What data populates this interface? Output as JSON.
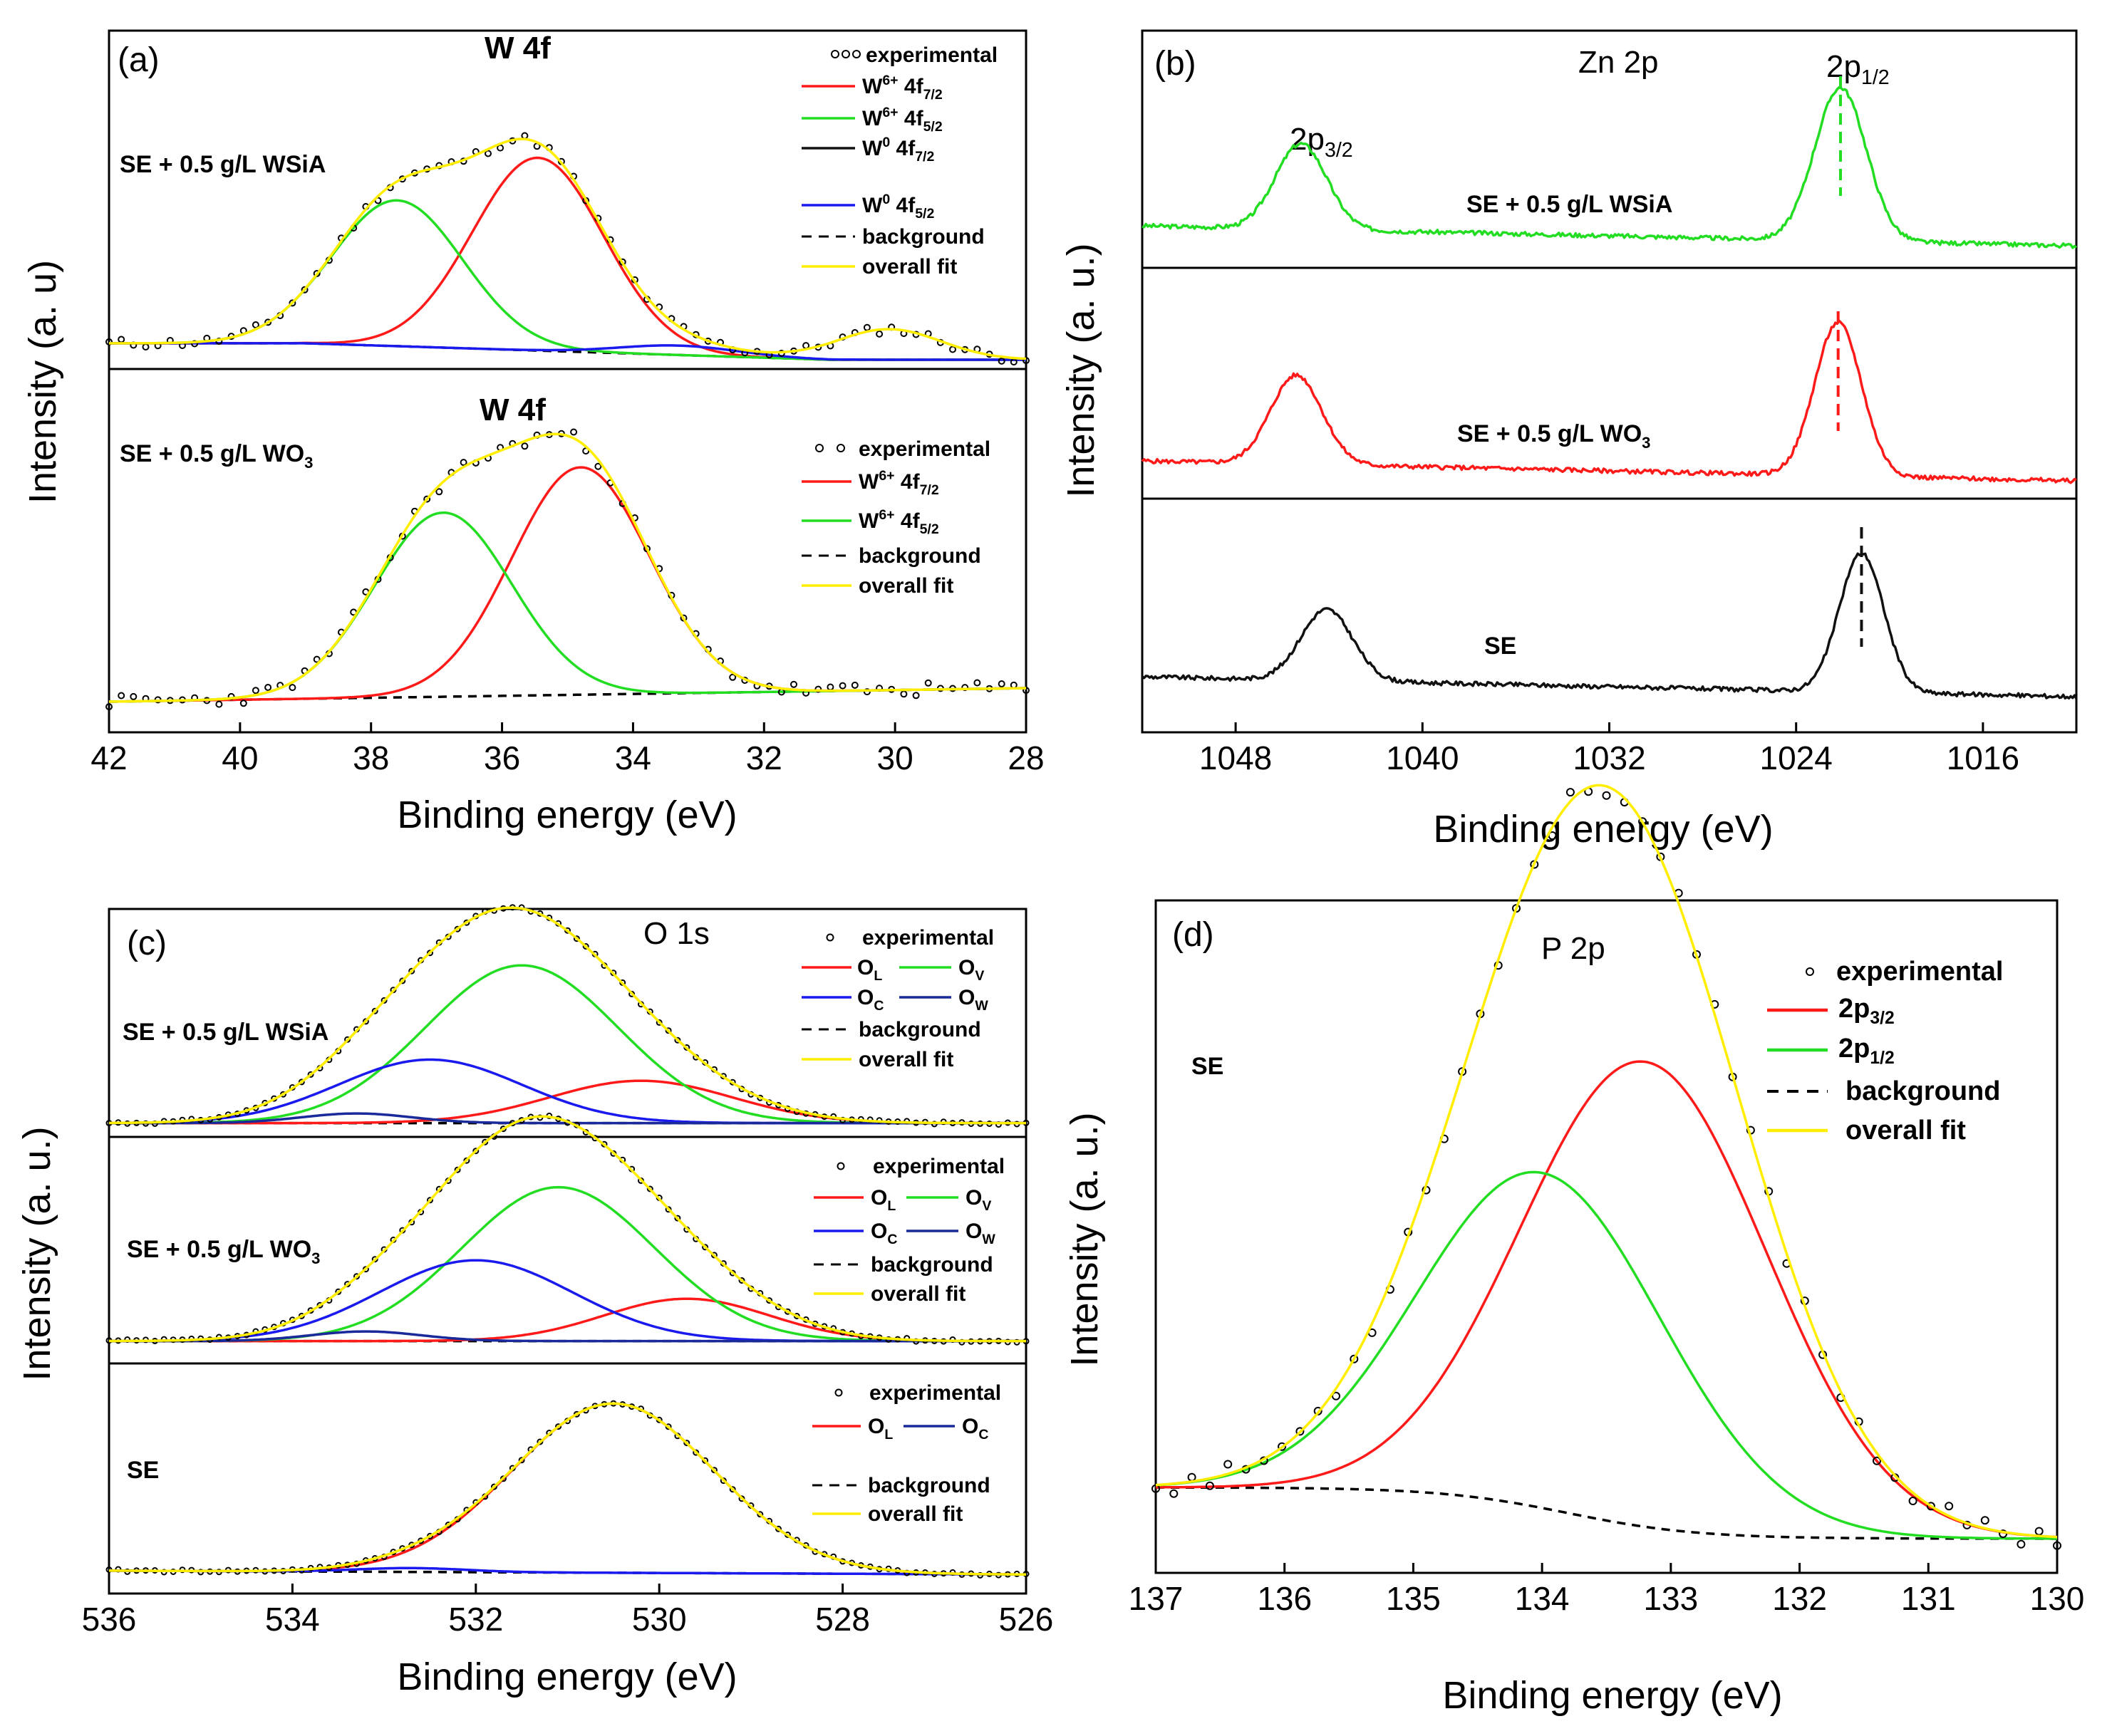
{
  "figure": {
    "x_axis_label": "Binding energy (eV)",
    "y_axis_label_a": "Intensity (a. u)",
    "y_axis_label": "Intensity (a. u.)"
  },
  "colors": {
    "experimental": "#000000",
    "red": "#ff1a1a",
    "green": "#22dd22",
    "black": "#111111",
    "blue": "#1a1aee",
    "navy": "#1a2a9a",
    "background": "#000000",
    "overall_fit": "#ffee00"
  },
  "chart_data": [
    {
      "panel": "(a)",
      "type": "line",
      "title": "W 4f",
      "xlabel": "Binding energy (eV)",
      "ylabel": "Intensity (a. u)",
      "xlim": [
        42,
        28
      ],
      "xticks": [
        "42",
        "40",
        "38",
        "36",
        "34",
        "32",
        "30",
        "28"
      ],
      "subplots": [
        {
          "sample": "SE + 0.5 g/L WSiA",
          "title": "W 4f",
          "legend": [
            "experimental",
            "W6+ 4f7/2",
            "W6+ 4f5/2",
            "W0 4f7/2",
            "W0 4f5/2",
            "background",
            "overall fit"
          ],
          "peaks": [
            {
              "name": "W6+ 4f7/2",
              "center": 35.45,
              "height": 0.82,
              "width": 1.0
            },
            {
              "name": "W6+ 4f5/2",
              "center": 37.6,
              "height": 0.62,
              "width": 1.0
            },
            {
              "name": "W0 4f7/2",
              "center": 31.3,
              "height": 0.0,
              "width": 0.9
            },
            {
              "name": "W0 4f5/2",
              "center": 33.3,
              "height": 0.04,
              "width": 0.9
            },
            {
              "name": "satellite",
              "center": 30.1,
              "height": 0.13,
              "width": 0.8
            }
          ]
        },
        {
          "sample": "SE + 0.5 g/L WO3",
          "title": "W 4f",
          "legend": [
            "experimental",
            "W6+ 4f7/2",
            "W6+ 4f5/2",
            "background",
            "overall fit"
          ],
          "peaks": [
            {
              "name": "W6+ 4f7/2",
              "center": 34.8,
              "height": 0.84,
              "width": 1.05
            },
            {
              "name": "W6+ 4f5/2",
              "center": 36.9,
              "height": 0.68,
              "width": 1.05
            }
          ]
        }
      ]
    },
    {
      "panel": "(b)",
      "type": "line",
      "title": "Zn 2p",
      "xlabel": "Binding energy (eV)",
      "ylabel": "Intensity (a. u.)",
      "xlim": [
        1052,
        1012
      ],
      "xticks": [
        "1048",
        "1040",
        "1032",
        "1024",
        "1016"
      ],
      "annotations": [
        "2p3/2",
        "2p1/2"
      ],
      "series": [
        {
          "name": "SE + 0.5 g/L WSiA",
          "color": "green",
          "peak_2p3_2": 1045.2,
          "peak_2p1_2": 1022.1
        },
        {
          "name": "SE + 0.5 g/L WO3",
          "color": "red",
          "peak_2p3_2": 1045.4,
          "peak_2p1_2": 1022.2
        },
        {
          "name": "SE",
          "color": "black",
          "peak_2p3_2": 1044.1,
          "peak_2p1_2": 1021.2
        }
      ]
    },
    {
      "panel": "(c)",
      "type": "line",
      "title": "O 1s",
      "xlabel": "Binding energy (eV)",
      "ylabel": "Intensity (a. u.)",
      "xlim": [
        536,
        526
      ],
      "xticks": [
        "536",
        "534",
        "532",
        "530",
        "528",
        "526"
      ],
      "subplots": [
        {
          "sample": "SE + 0.5 g/L WSiA",
          "legend": [
            "experimental",
            "OL",
            "OV",
            "OC",
            "OW",
            "background",
            "overall fit"
          ],
          "peaks": [
            {
              "name": "OL",
              "center": 530.2,
              "height": 0.22,
              "width": 1.0
            },
            {
              "name": "OV",
              "center": 531.5,
              "height": 0.82,
              "width": 1.05
            },
            {
              "name": "OC",
              "center": 532.5,
              "height": 0.33,
              "width": 1.0
            },
            {
              "name": "OW",
              "center": 533.3,
              "height": 0.05,
              "width": 0.6
            }
          ]
        },
        {
          "sample": "SE + 0.5 g/L WO3",
          "legend": [
            "experimental",
            "OL",
            "OV",
            "OC",
            "OW",
            "background",
            "overall fit"
          ],
          "peaks": [
            {
              "name": "OL",
              "center": 529.7,
              "height": 0.22,
              "width": 0.9
            },
            {
              "name": "OV",
              "center": 531.1,
              "height": 0.8,
              "width": 1.05
            },
            {
              "name": "OC",
              "center": 532.0,
              "height": 0.42,
              "width": 1.05
            },
            {
              "name": "OW",
              "center": 533.2,
              "height": 0.05,
              "width": 0.6
            }
          ]
        },
        {
          "sample": "SE",
          "legend": [
            "experimental",
            "OL",
            "OC",
            "background",
            "overall fit"
          ],
          "peaks": [
            {
              "name": "OL",
              "center": 530.5,
              "height": 0.88,
              "width": 1.1
            },
            {
              "name": "OC",
              "center": 532.7,
              "height": 0.02,
              "width": 0.6
            }
          ]
        }
      ]
    },
    {
      "panel": "(d)",
      "type": "line",
      "title": "P 2p",
      "sample": "SE",
      "xlabel": "Binding energy (eV)",
      "ylabel": "Intensity (a. u.)",
      "xlim": [
        137,
        130
      ],
      "xticks": [
        "137",
        "136",
        "135",
        "134",
        "133",
        "132",
        "131",
        "130"
      ],
      "legend": [
        "experimental",
        "2p3/2",
        "2p1/2",
        "background",
        "overall fit"
      ],
      "peaks": [
        {
          "name": "2p3/2",
          "center": 133.2,
          "height": 0.68,
          "width": 0.95
        },
        {
          "name": "2p1/2",
          "center": 134.0,
          "height": 0.49,
          "width": 0.95
        }
      ]
    }
  ],
  "panel_a": {
    "label": "(a)",
    "top": {
      "title": "W 4f",
      "sample_pre": "SE + 0.5 g/L WSiA",
      "sample_sub": "",
      "legend": {
        "experimental": "experimental",
        "w6_72_pre": "W",
        "w6_72_sup": "6+",
        "w6_72_mid": " 4f",
        "w6_72_sub": "7/2",
        "w6_52_pre": "W",
        "w6_52_sup": "6+",
        "w6_52_mid": " 4f",
        "w6_52_sub": "5/2",
        "w0_72_pre": "W",
        "w0_72_sup": "0",
        "w0_72_mid": " 4f",
        "w0_72_sub": "7/2",
        "w0_52_pre": "W",
        "w0_52_sup": "0",
        "w0_52_mid": " 4f",
        "w0_52_sub": "5/2",
        "background": "background",
        "overall": "overall fit"
      }
    },
    "bottom": {
      "title": "W 4f",
      "sample_pre": "SE + 0.5 g/L WO",
      "sample_sub": "3",
      "legend": {
        "experimental": "experimental",
        "w6_72_pre": "W",
        "w6_72_sup": "6+",
        "w6_72_mid": " 4f",
        "w6_72_sub": "7/2",
        "w6_52_pre": "W",
        "w6_52_sup": "6+",
        "w6_52_mid": " 4f",
        "w6_52_sub": "5/2",
        "background": "background",
        "overall": "overall fit"
      }
    }
  },
  "panel_b": {
    "label": "(b)",
    "title": "Zn 2p",
    "ann_32_pre": "2p",
    "ann_32_sub": "3/2",
    "ann_12_pre": "2p",
    "ann_12_sub": "1/2",
    "sample_wsia": "SE + 0.5 g/L WSiA",
    "sample_wo3_pre": "SE + 0.5 g/L WO",
    "sample_wo3_sub": "3",
    "sample_se": "SE"
  },
  "panel_c": {
    "label": "(c)",
    "title": "O 1s",
    "sample_wsia": "SE + 0.5 g/L WSiA",
    "sample_wo3_pre": "SE + 0.5 g/L WO",
    "sample_wo3_sub": "3",
    "sample_se": "SE",
    "legend": {
      "experimental": "experimental",
      "o": "O",
      "l": "L",
      "v": "V",
      "c": "C",
      "w": "W",
      "background": "background",
      "overall": "overall fit"
    }
  },
  "panel_d": {
    "label": "(d)",
    "title": "P 2p",
    "sample": "SE",
    "legend": {
      "experimental": "experimental",
      "p32_pre": "2p",
      "p32_sub": "3/2",
      "p12_pre": "2p",
      "p12_sub": "1/2",
      "background": "background",
      "overall": "overall fit"
    }
  }
}
